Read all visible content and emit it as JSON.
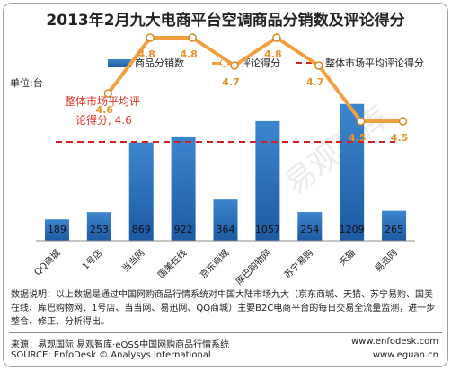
{
  "title": "2013年2月九大电商平台空调商品分销数及评论得分",
  "unit_label": "单位:台",
  "legend": {
    "bar": "商品分销数",
    "line": "评论得分",
    "ref": "整体市场平均评论得分"
  },
  "ref_annotation": {
    "line1": "整体市场平均评",
    "line2": "论得分, 4.6"
  },
  "watermark": "易观智库",
  "note": "数据说明：以上数据是通过中国网购商品行情系统对中国大陆市场九大（京东商城、天猫、苏宁易购、国美在线、库巴购物网、1号店、当当网、易迅网、QQ商城）主要B2C电商平台的每日交易全流量监测，进一步整合、修正、分析得出。",
  "source": {
    "line1_left": "来源：易观国际·易观智库·eQSS中国网购商品行情系统",
    "line1_right": "www.enfodesk.com",
    "line2_left": "SOURCE: EnfoDesk © Analysys International",
    "line2_right": "www.eguan.cn"
  },
  "colors": {
    "bar_top": "#3d86cf",
    "bar_bottom": "#1c5aa3",
    "line": "#f0a040",
    "marker_fill": "#ffffff",
    "score_label": "#e8922a",
    "ref_line": "#d52020",
    "ref_text": "#e03a2a"
  },
  "chart_data": {
    "type": "bar",
    "categories": [
      "QQ商城",
      "1号店",
      "当当网",
      "国美在线",
      "京东商城",
      "库巴购物网",
      "苏宁易购",
      "天猫",
      "易迅网"
    ],
    "series": [
      {
        "name": "商品分销数",
        "type": "bar",
        "values": [
          189,
          253,
          869,
          922,
          364,
          1057,
          254,
          1209,
          265
        ]
      },
      {
        "name": "评论得分",
        "type": "line",
        "values": [
          null,
          4.6,
          4.8,
          4.8,
          4.7,
          4.8,
          4.7,
          4.5,
          4.5
        ]
      },
      {
        "name": "整体市场平均评论得分",
        "type": "reference",
        "value": 4.6
      }
    ],
    "bar_axis_range": [
      0,
      1350
    ],
    "score_axis_range": [
      4.0,
      5.0
    ],
    "grid": false,
    "legend_position": "top"
  }
}
